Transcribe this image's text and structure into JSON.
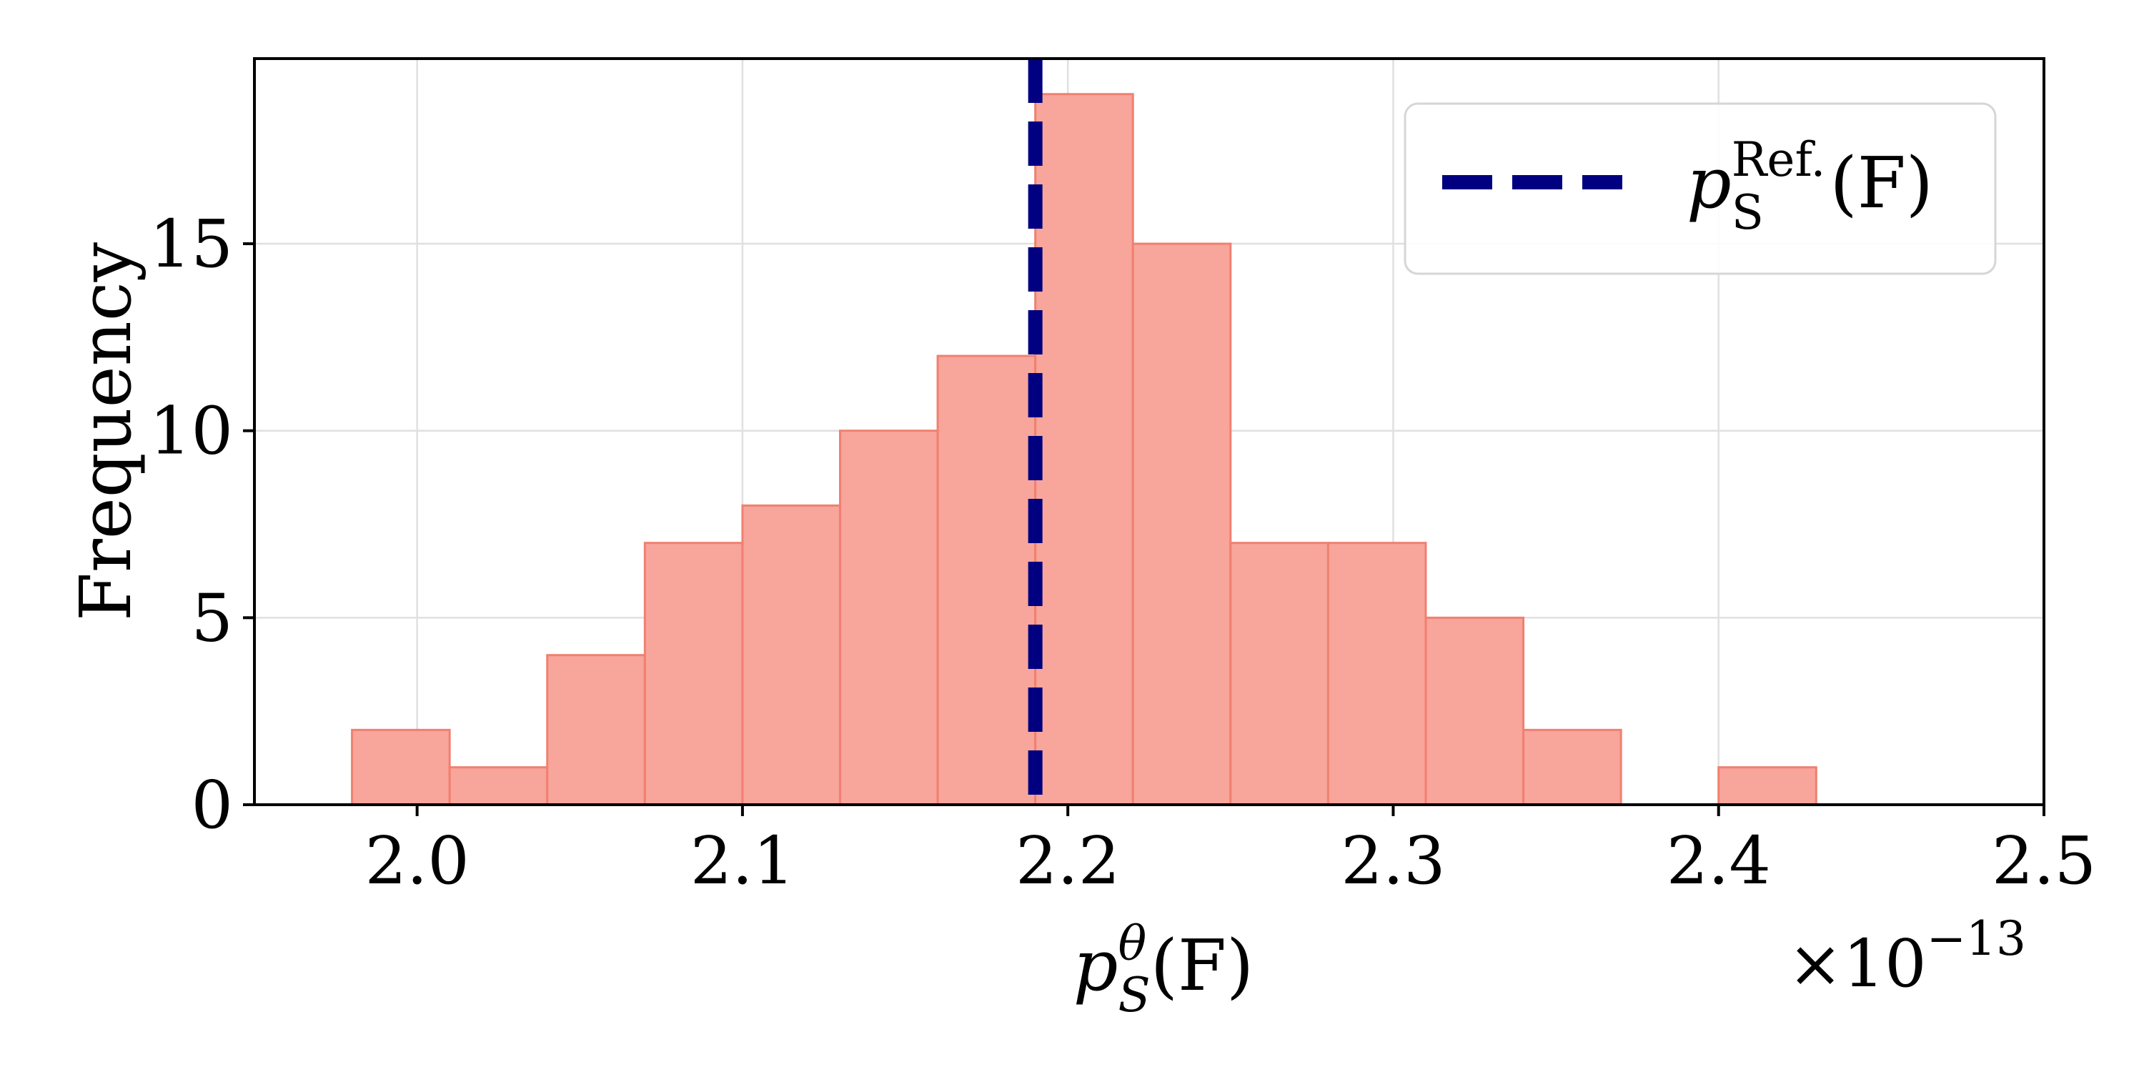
{
  "chart_data": {
    "type": "bar",
    "subtype": "histogram",
    "bin_width": 0.03,
    "bins": [
      {
        "left": 1.98,
        "right": 2.01,
        "count": 2
      },
      {
        "left": 2.01,
        "right": 2.04,
        "count": 1
      },
      {
        "left": 2.04,
        "right": 2.07,
        "count": 4
      },
      {
        "left": 2.07,
        "right": 2.1,
        "count": 7
      },
      {
        "left": 2.1,
        "right": 2.13,
        "count": 8
      },
      {
        "left": 2.13,
        "right": 2.16,
        "count": 10
      },
      {
        "left": 2.16,
        "right": 2.19,
        "count": 12
      },
      {
        "left": 2.19,
        "right": 2.22,
        "count": 19
      },
      {
        "left": 2.22,
        "right": 2.25,
        "count": 15
      },
      {
        "left": 2.25,
        "right": 2.28,
        "count": 7
      },
      {
        "left": 2.28,
        "right": 2.31,
        "count": 7
      },
      {
        "left": 2.31,
        "right": 2.34,
        "count": 5
      },
      {
        "left": 2.34,
        "right": 2.37,
        "count": 2
      },
      {
        "left": 2.37,
        "right": 2.4,
        "count": 0
      },
      {
        "left": 2.4,
        "right": 2.43,
        "count": 1
      }
    ],
    "reference_line": {
      "x": 2.19,
      "label_main": "p",
      "label_sub": "S",
      "label_sup": "Ref.",
      "label_tail": "(F)",
      "color": "#000080",
      "style": "dashed"
    },
    "bar_fill": "#f8a59c",
    "bar_edge": "#f08070",
    "xlim": [
      1.95,
      2.5
    ],
    "ylim": [
      0,
      19.95
    ],
    "x_ticks": [
      {
        "value": 2.0,
        "label": "2.0"
      },
      {
        "value": 2.1,
        "label": "2.1"
      },
      {
        "value": 2.2,
        "label": "2.2"
      },
      {
        "value": 2.3,
        "label": "2.3"
      },
      {
        "value": 2.4,
        "label": "2.4"
      },
      {
        "value": 2.5,
        "label": "2.5"
      }
    ],
    "y_ticks": [
      {
        "value": 0,
        "label": "0"
      },
      {
        "value": 5,
        "label": "5"
      },
      {
        "value": 10,
        "label": "10"
      },
      {
        "value": 15,
        "label": "15"
      }
    ],
    "xlabel": {
      "main": "p",
      "sup": "θ",
      "sub": "S",
      "tail": "(F)"
    },
    "ylabel": "Frequency",
    "offset_text": {
      "main": "×10",
      "exp": "−13"
    },
    "grid": true,
    "legend_position": "top-right"
  }
}
